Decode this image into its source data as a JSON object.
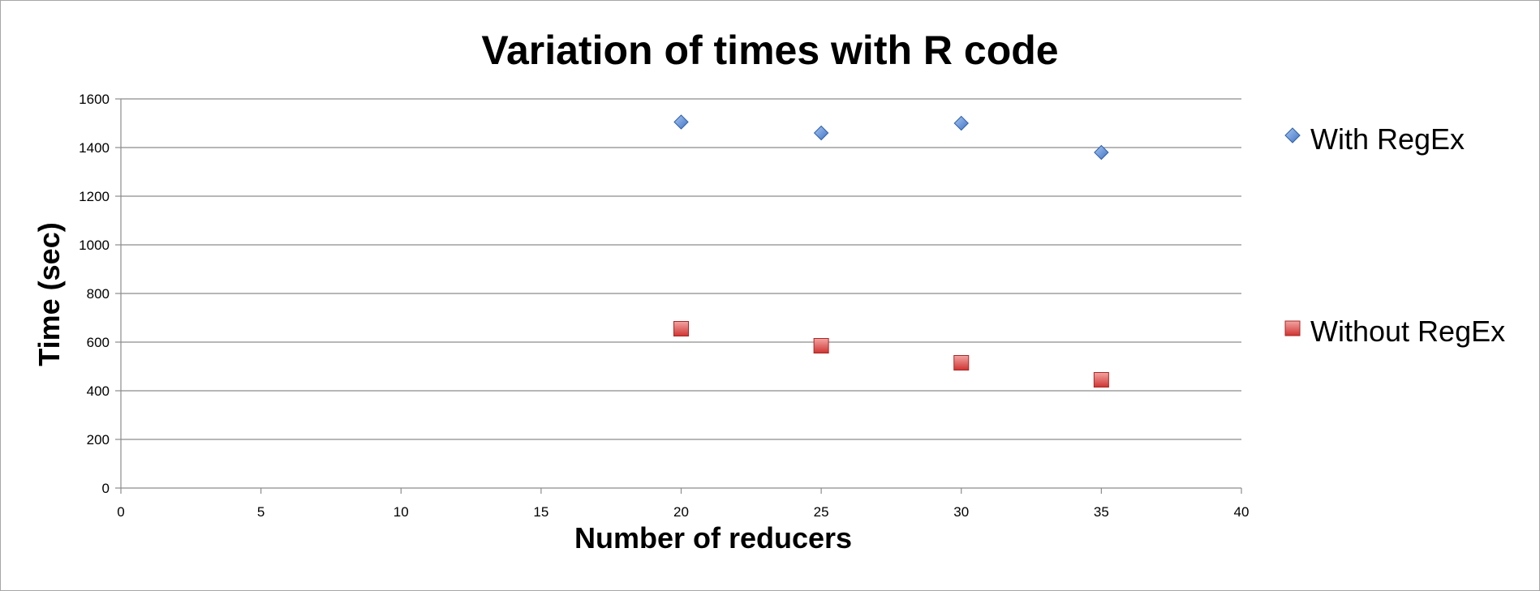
{
  "chart_data": {
    "type": "scatter",
    "title": "Variation of times with R code",
    "xlabel": "Number of reducers",
    "ylabel": "Time (sec)",
    "xlim": [
      0,
      40
    ],
    "ylim": [
      0,
      1600
    ],
    "xticks": [
      0,
      5,
      10,
      15,
      20,
      25,
      30,
      35,
      40
    ],
    "yticks": [
      0,
      200,
      400,
      600,
      800,
      1000,
      1200,
      1400,
      1600
    ],
    "grid": "horizontal",
    "legend_position": "right",
    "series": [
      {
        "name": "With RegEx",
        "marker": "diamond",
        "color": "#4f86d6",
        "x": [
          20,
          25,
          30,
          35
        ],
        "y": [
          1505,
          1460,
          1500,
          1380
        ]
      },
      {
        "name": "Without RegEx",
        "marker": "square",
        "color": "#d9423f",
        "x": [
          20,
          25,
          30,
          35
        ],
        "y": [
          655,
          585,
          515,
          445
        ]
      }
    ]
  }
}
